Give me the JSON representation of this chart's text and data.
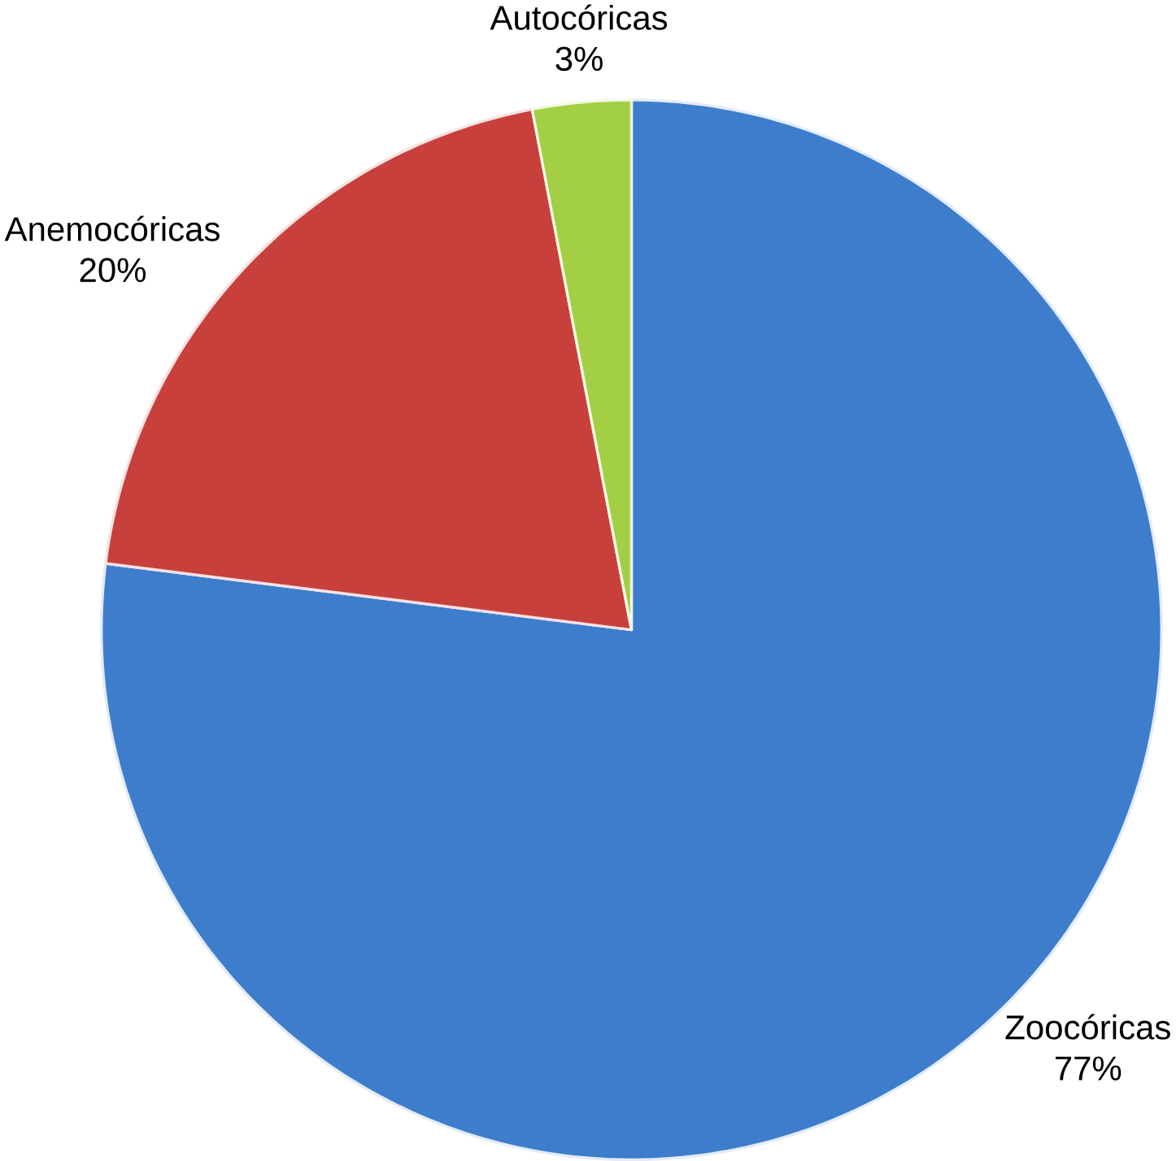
{
  "chart_data": {
    "type": "pie",
    "categories": [
      "Zoocóricas",
      "Anemocóricas",
      "Autocóricas"
    ],
    "values": [
      77,
      20,
      3
    ],
    "value_labels": [
      "77%",
      "20%",
      "3%"
    ],
    "colors": [
      "#3d7dcc",
      "#c8403c",
      "#a3cf45"
    ]
  }
}
